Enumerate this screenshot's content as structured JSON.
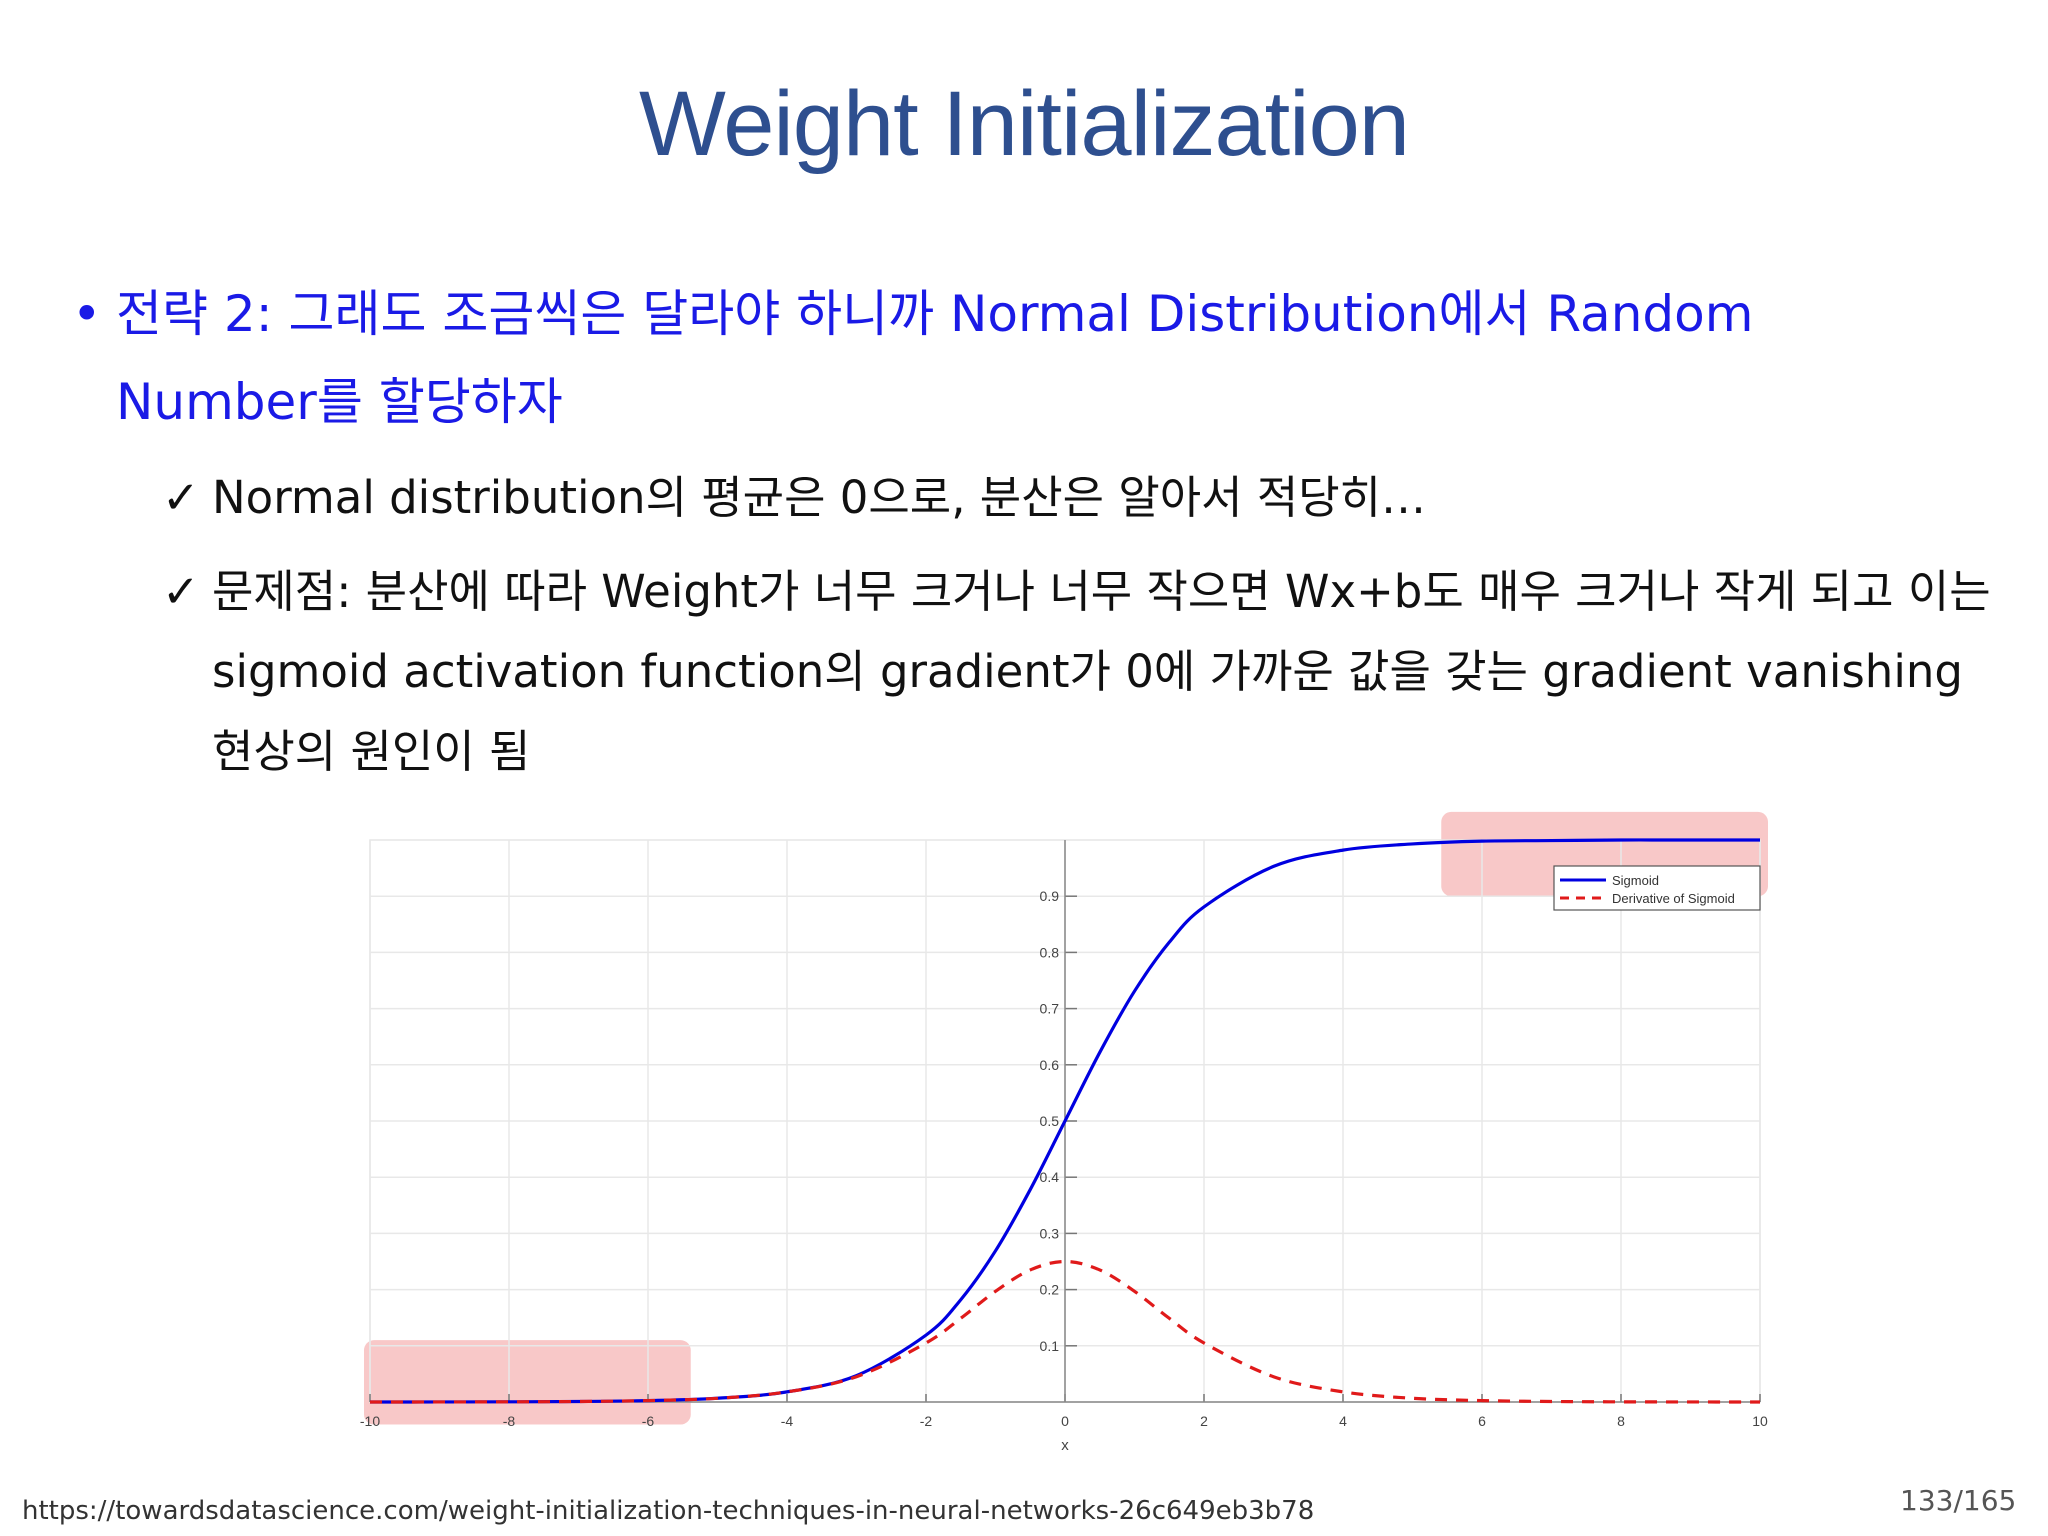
{
  "slide": {
    "title": "Weight Initialization",
    "bullet": {
      "symbol": "•",
      "text": "전략 2: 그래도 조금씩은 달라야 하니까 Normal Distribution에서 Random Number를 할당하자"
    },
    "subpoints": [
      {
        "symbol": "✓",
        "text": "Normal distribution의 평균은 0으로, 분산은 알아서 적당히…"
      },
      {
        "symbol": "✓",
        "text": "문제점: 분산에 따라 Weight가 너무 크거나 너무 작으면 Wx+b도 매우 크거나 작게 되고 이는 sigmoid activation function의 gradient가 0에 가까운 값을 갖는 gradient vanishing 현상의 원인이 됨"
      }
    ],
    "source": "https://towardsdatascience.com/weight-initialization-techniques-in-neural-networks-26c649eb3b78",
    "page_number": "133/165"
  },
  "chart_data": {
    "type": "line",
    "title": "",
    "xlabel": "x",
    "ylabel": "",
    "xlim": [
      -10,
      10
    ],
    "ylim": [
      0,
      1
    ],
    "grid": true,
    "legend": "top-right",
    "x_ticks": [
      "-10",
      "-8",
      "-6",
      "-4",
      "-2",
      "0",
      "2",
      "4",
      "6",
      "8",
      "10"
    ],
    "y_ticks": [
      "0.1",
      "0.2",
      "0.3",
      "0.4",
      "0.5",
      "0.6",
      "0.7",
      "0.8",
      "0.9"
    ],
    "x": [
      -10,
      -9,
      -8,
      -7,
      -6,
      -5,
      -4,
      -3,
      -2,
      -1.5,
      -1,
      -0.5,
      0,
      0.5,
      1,
      1.5,
      2,
      3,
      4,
      5,
      6,
      7,
      8,
      9,
      10
    ],
    "series": [
      {
        "name": "Sigmoid",
        "color": "#0000e0",
        "style": "solid",
        "values": [
          0.0,
          0.0001,
          0.0003,
          0.0009,
          0.0025,
          0.0067,
          0.018,
          0.047,
          0.119,
          0.182,
          0.269,
          0.378,
          0.5,
          0.622,
          0.731,
          0.818,
          0.881,
          0.953,
          0.982,
          0.993,
          0.998,
          0.999,
          1.0,
          1.0,
          1.0
        ]
      },
      {
        "name": "Derivative of Sigmoid",
        "color": "#e01a1a",
        "style": "dashed",
        "values": [
          0.0,
          0.0001,
          0.0003,
          0.0009,
          0.0025,
          0.0066,
          0.018,
          0.045,
          0.105,
          0.149,
          0.197,
          0.235,
          0.25,
          0.235,
          0.197,
          0.149,
          0.105,
          0.045,
          0.018,
          0.0066,
          0.0025,
          0.0009,
          0.0003,
          0.0001,
          0.0
        ]
      }
    ],
    "highlights": [
      {
        "label": "saturation-left",
        "x_range": [
          -10,
          -5.5
        ],
        "y_range": [
          -0.04,
          0.11
        ]
      },
      {
        "label": "saturation-right",
        "x_range": [
          5.5,
          10
        ],
        "y_range": [
          0.9,
          1.05
        ]
      }
    ]
  }
}
